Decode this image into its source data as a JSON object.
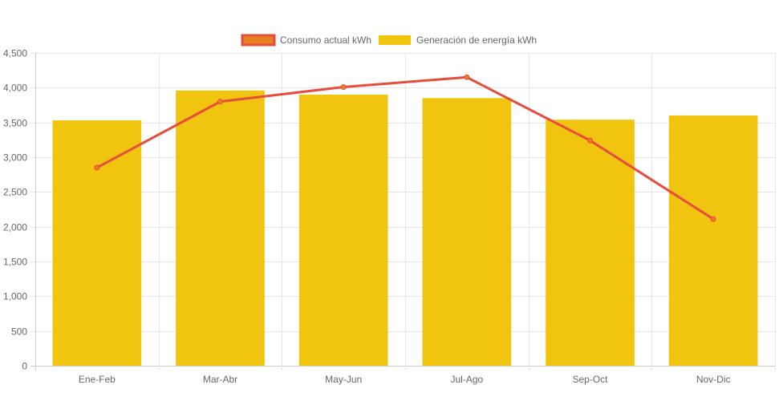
{
  "chart_data": {
    "type": "bar",
    "title": "",
    "xlabel": "",
    "ylabel": "",
    "categories": [
      "Ene-Feb",
      "Mar-Abr",
      "May-Jun",
      "Jul-Ago",
      "Sep-Oct",
      "Nov-Dic"
    ],
    "ylim": [
      0,
      4500
    ],
    "yticks": [
      0,
      500,
      1000,
      1500,
      2000,
      2500,
      3000,
      3500,
      4000,
      4500
    ],
    "ytick_labels": [
      "0",
      "500",
      "1,000",
      "1,500",
      "2,000",
      "2,500",
      "3,000",
      "3,500",
      "4,000",
      "4,500"
    ],
    "grid": true,
    "legend_position": "top",
    "series": [
      {
        "name": "Consumo actual kWh",
        "type": "line",
        "values": [
          2850,
          3800,
          4010,
          4150,
          3240,
          2110
        ],
        "color": "#e74c3c",
        "fill_color": "#e67e22"
      },
      {
        "name": "Generación de energía kWh",
        "type": "bar",
        "values": [
          3530,
          3960,
          3900,
          3850,
          3540,
          3600
        ],
        "color": "#f1c40f"
      }
    ]
  }
}
